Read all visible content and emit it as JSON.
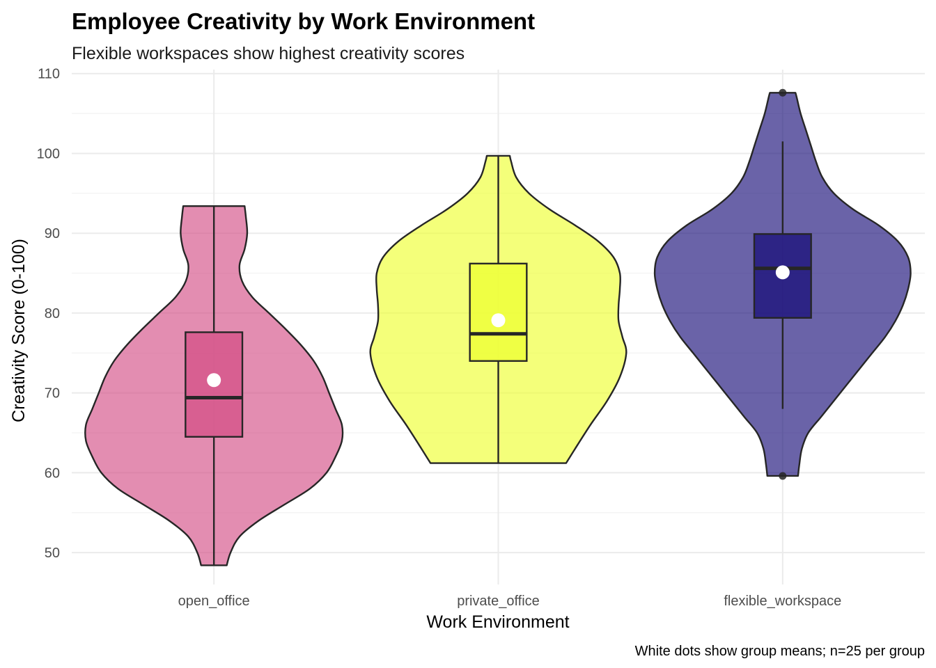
{
  "chart_data": {
    "type": "violin",
    "title": "Employee Creativity by Work Environment",
    "subtitle": "Flexible workspaces show highest creativity scores",
    "xlabel": "Work Environment",
    "ylabel": "Creativity Score (0-100)",
    "caption": "White dots show group means; n=25 per group",
    "ylim": [
      46,
      110.5
    ],
    "y_ticks": [
      50,
      60,
      70,
      80,
      90,
      100,
      110
    ],
    "grid": true,
    "categories": [
      "open_office",
      "private_office",
      "flexible_workspace"
    ],
    "groups": [
      {
        "category": "open_office",
        "color": "#d45087",
        "min": 48.4,
        "q1": 64.5,
        "median": 69.4,
        "q3": 77.6,
        "max": 93.4,
        "mean": 71.6,
        "outliers": [],
        "density": [
          [
            48.4,
            0.1
          ],
          [
            50,
            0.13
          ],
          [
            52,
            0.2
          ],
          [
            54,
            0.35
          ],
          [
            56,
            0.55
          ],
          [
            58,
            0.75
          ],
          [
            60,
            0.88
          ],
          [
            62,
            0.95
          ],
          [
            64,
            1.0
          ],
          [
            66,
            1.0
          ],
          [
            68,
            0.95
          ],
          [
            70,
            0.9
          ],
          [
            72,
            0.85
          ],
          [
            74,
            0.78
          ],
          [
            76,
            0.68
          ],
          [
            78,
            0.56
          ],
          [
            80,
            0.43
          ],
          [
            82,
            0.3
          ],
          [
            84,
            0.22
          ],
          [
            86,
            0.2
          ],
          [
            88,
            0.24
          ],
          [
            90,
            0.26
          ],
          [
            92,
            0.25
          ],
          [
            93.4,
            0.24
          ]
        ]
      },
      {
        "category": "private_office",
        "color": "#eeff33",
        "min": 61.2,
        "q1": 74.0,
        "median": 77.4,
        "q3": 86.2,
        "max": 99.7,
        "mean": 79.1,
        "outliers": [],
        "density": [
          [
            61.2,
            0.53
          ],
          [
            63,
            0.6
          ],
          [
            66,
            0.72
          ],
          [
            69,
            0.85
          ],
          [
            72,
            0.95
          ],
          [
            75,
            1.0
          ],
          [
            77,
            0.97
          ],
          [
            79,
            0.94
          ],
          [
            81,
            0.94
          ],
          [
            83,
            0.95
          ],
          [
            85,
            0.95
          ],
          [
            87,
            0.9
          ],
          [
            89,
            0.78
          ],
          [
            91,
            0.6
          ],
          [
            93,
            0.4
          ],
          [
            95,
            0.24
          ],
          [
            97,
            0.14
          ],
          [
            99,
            0.1
          ],
          [
            99.7,
            0.09
          ]
        ]
      },
      {
        "category": "flexible_workspace",
        "color": "#1a0f7a",
        "min": 68.0,
        "q1": 79.4,
        "median": 85.6,
        "q3": 89.9,
        "max": 101.5,
        "mean": 85.1,
        "outliers": [
          107.6,
          59.6
        ],
        "density": [
          [
            59.6,
            0.12
          ],
          [
            61,
            0.13
          ],
          [
            63,
            0.15
          ],
          [
            65,
            0.2
          ],
          [
            67,
            0.3
          ],
          [
            69,
            0.4
          ],
          [
            71,
            0.5
          ],
          [
            73,
            0.6
          ],
          [
            75,
            0.7
          ],
          [
            77,
            0.8
          ],
          [
            79,
            0.88
          ],
          [
            81,
            0.94
          ],
          [
            83,
            0.98
          ],
          [
            85,
            1.0
          ],
          [
            87,
            0.98
          ],
          [
            89,
            0.9
          ],
          [
            91,
            0.75
          ],
          [
            93,
            0.55
          ],
          [
            95,
            0.4
          ],
          [
            97,
            0.31
          ],
          [
            99,
            0.26
          ],
          [
            101,
            0.22
          ],
          [
            103,
            0.18
          ],
          [
            105,
            0.14
          ],
          [
            107,
            0.11
          ],
          [
            107.6,
            0.1
          ]
        ]
      }
    ]
  }
}
